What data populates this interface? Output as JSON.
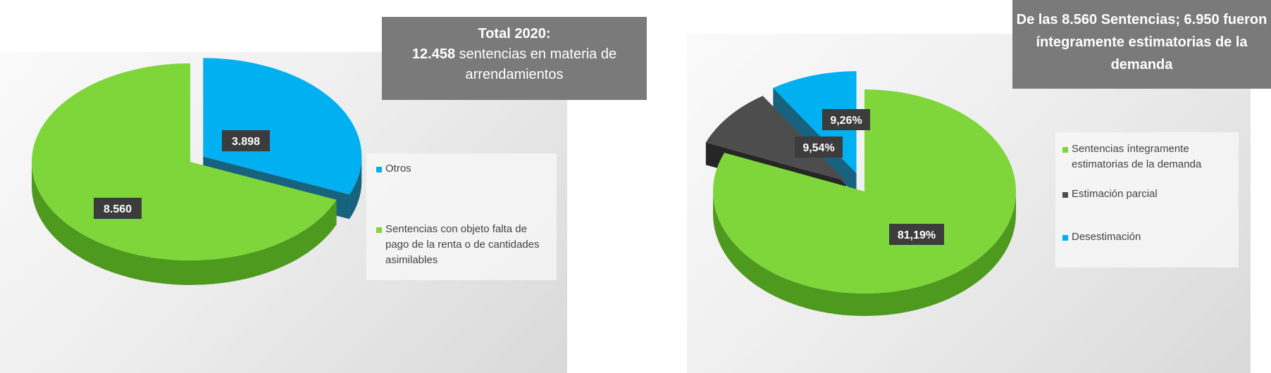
{
  "chart_data": [
    {
      "type": "pie",
      "title_parts": {
        "year_label": "Total 2020",
        "total": "12.458",
        "rest": "sentencias en materia de arrendamientos"
      },
      "categories": [
        "Otros",
        "Sentencias con objeto falta de pago de la renta o de cantidades asimilables"
      ],
      "values": [
        3898,
        8560
      ],
      "data_labels": [
        "3.898",
        "8.560"
      ],
      "colors": [
        "#00b0f0",
        "#7ed63a"
      ],
      "side_colors": [
        "#17627e",
        "#4e9a1e"
      ],
      "exploded_category": "Otros",
      "legend_position": "right"
    },
    {
      "type": "pie",
      "title": "De las 8.560 Sentencias; 6.950 fueron íntegramente estimatorias de la demanda",
      "categories": [
        "Sentencias íntegramente estimatorias de la demanda",
        "Estimación parcial",
        "Desestimación"
      ],
      "values": [
        81.19,
        9.54,
        9.26
      ],
      "data_labels": [
        "81,19%",
        "9,54%",
        "9,26%"
      ],
      "colors": [
        "#7ed63a",
        "#4d4d4d",
        "#00b0f0"
      ],
      "side_colors": [
        "#4e9a1e",
        "#262626",
        "#17627e"
      ],
      "exploded_categories": [
        "Estimación parcial",
        "Desestimación"
      ],
      "legend_position": "right"
    }
  ]
}
